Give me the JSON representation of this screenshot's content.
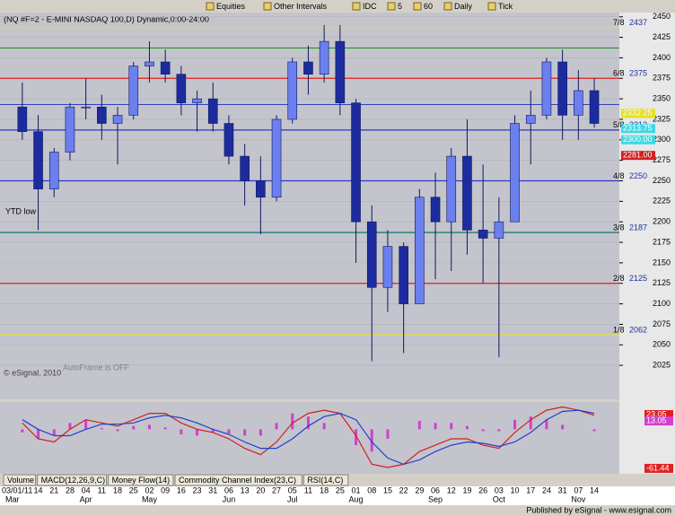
{
  "toolbar": {
    "symbol": "(NQ #F=2 - E-MINI NASDAQ 100,D) Dynamic,0:00-24:00",
    "items": [
      "Equities",
      "Other Intervals",
      "IDC",
      "5",
      "60",
      "Daily",
      "Tick"
    ]
  },
  "tabs": [
    "Volume",
    "MACD(12,26,9,C)",
    "Money Flow(14)",
    "Commodity Channel Index(23,C)",
    "RSI(14,C)"
  ],
  "footer": "Published by eSignal - www.esignal.com",
  "chart_data": [
    {
      "type": "candlestick",
      "categories": [
        "03/01/11",
        "14",
        "21",
        "28",
        "04",
        "11",
        "18",
        "25",
        "02",
        "09",
        "16",
        "23",
        "31",
        "06",
        "13",
        "20",
        "27",
        "05",
        "11",
        "18",
        "25",
        "01",
        "08",
        "15",
        "22",
        "29",
        "06",
        "12",
        "19",
        "26",
        "03",
        "10",
        "17",
        "24",
        "31",
        "07",
        "14"
      ],
      "month_labels": [
        "Mar",
        null,
        null,
        null,
        "Apr",
        null,
        null,
        null,
        "May",
        null,
        null,
        null,
        null,
        "Jun",
        null,
        null,
        null,
        "Jul",
        null,
        null,
        null,
        "Aug",
        null,
        null,
        null,
        null,
        "Sep",
        null,
        null,
        null,
        "Oct",
        null,
        null,
        null,
        null,
        "Nov",
        null
      ],
      "ohlc": [
        [
          2340,
          2370,
          2300,
          2310
        ],
        [
          2310,
          2330,
          2190,
          2240
        ],
        [
          2240,
          2290,
          2230,
          2285
        ],
        [
          2285,
          2345,
          2275,
          2340
        ],
        [
          2340,
          2375,
          2325,
          2340
        ],
        [
          2340,
          2355,
          2300,
          2320
        ],
        [
          2320,
          2340,
          2270,
          2330
        ],
        [
          2330,
          2395,
          2325,
          2390
        ],
        [
          2390,
          2420,
          2370,
          2395
        ],
        [
          2395,
          2410,
          2370,
          2380
        ],
        [
          2380,
          2390,
          2330,
          2345
        ],
        [
          2345,
          2360,
          2310,
          2350
        ],
        [
          2350,
          2370,
          2310,
          2320
        ],
        [
          2320,
          2330,
          2270,
          2280
        ],
        [
          2280,
          2295,
          2220,
          2250
        ],
        [
          2250,
          2280,
          2185,
          2230
        ],
        [
          2230,
          2330,
          2225,
          2325
        ],
        [
          2325,
          2400,
          2320,
          2395
        ],
        [
          2395,
          2415,
          2355,
          2380
        ],
        [
          2380,
          2440,
          2370,
          2420
        ],
        [
          2420,
          2440,
          2330,
          2345
        ],
        [
          2345,
          2350,
          2150,
          2200
        ],
        [
          2200,
          2220,
          2030,
          2120
        ],
        [
          2120,
          2190,
          2090,
          2170
        ],
        [
          2170,
          2175,
          2040,
          2100
        ],
        [
          2100,
          2240,
          2100,
          2230
        ],
        [
          2230,
          2260,
          2130,
          2200
        ],
        [
          2200,
          2290,
          2140,
          2280
        ],
        [
          2280,
          2325,
          2160,
          2190
        ],
        [
          2190,
          2270,
          2125,
          2180
        ],
        [
          2180,
          2230,
          2035,
          2200
        ],
        [
          2200,
          2330,
          2200,
          2320
        ],
        [
          2320,
          2360,
          2270,
          2330
        ],
        [
          2330,
          2400,
          2325,
          2395
        ],
        [
          2395,
          2410,
          2300,
          2330
        ],
        [
          2330,
          2385,
          2300,
          2360
        ],
        [
          2360,
          2375,
          2315,
          2320
        ]
      ],
      "up_color": "#6b80ee",
      "down_color": "#1c2c9e",
      "ylim": [
        1989,
        2453
      ],
      "yticks": [
        2025,
        2050,
        2075,
        2100,
        2125,
        2150,
        2175,
        2200,
        2225,
        2250,
        2275,
        2300,
        2325,
        2350,
        2375,
        2400,
        2425,
        2450
      ],
      "grid": true,
      "levels": [
        {
          "name": "7/8",
          "value": 2437,
          "color": "#e6e020"
        },
        {
          "name": "6/8",
          "value": 2375,
          "color": "#e02020"
        },
        {
          "name": "5/8",
          "value": 2312,
          "color": "#2a3ac8"
        },
        {
          "name": "4/8",
          "value": 2250,
          "color": "#2a3ac8"
        },
        {
          "name": "3/8",
          "value": 2187,
          "color": "#207878"
        },
        {
          "name": "2/8",
          "value": 2125,
          "color": "#e02020"
        },
        {
          "name": "1/8",
          "value": 2062,
          "color": "#e6e020"
        }
      ],
      "extra_levels": [
        {
          "value": 2412,
          "color": "#208a20"
        },
        {
          "value": 2343,
          "color": "#3040c0"
        }
      ],
      "price_boxes": [
        {
          "value": 2332.25,
          "label": "2332.25",
          "color": "#e6e020"
        },
        {
          "value": 2313.75,
          "label": "2313.75",
          "color": "#40d8e0"
        },
        {
          "value": 2300,
          "label": "2300.00",
          "color": "#40d8e0"
        },
        {
          "value": 2281,
          "label": "2281.00",
          "color": "#d02020"
        }
      ],
      "annotations": [
        "YTD low",
        "AutoFrame is OFF",
        "© eSignal, 2010"
      ]
    },
    {
      "type": "line",
      "series": [
        {
          "color": "#d02020",
          "values": [
            10,
            -15,
            -20,
            0,
            15,
            10,
            5,
            15,
            25,
            25,
            10,
            0,
            -5,
            -15,
            -30,
            -40,
            -20,
            10,
            25,
            30,
            25,
            -10,
            -55,
            -60,
            -55,
            -35,
            -25,
            -15,
            -15,
            -25,
            -30,
            -5,
            15,
            30,
            35,
            30,
            22
          ]
        },
        {
          "color": "#2040d0",
          "values": [
            15,
            0,
            -10,
            -10,
            0,
            8,
            8,
            10,
            18,
            22,
            18,
            10,
            0,
            -8,
            -20,
            -30,
            -30,
            -15,
            5,
            20,
            25,
            15,
            -20,
            -45,
            -55,
            -48,
            -35,
            -25,
            -20,
            -22,
            -27,
            -20,
            -5,
            15,
            28,
            30,
            25
          ]
        }
      ],
      "histogram": {
        "color": "#d040d0",
        "values": [
          -5,
          -15,
          -10,
          10,
          15,
          2,
          -3,
          5,
          7,
          3,
          -8,
          -10,
          -5,
          -7,
          -10,
          -10,
          10,
          25,
          20,
          10,
          0,
          -25,
          -35,
          -15,
          0,
          13,
          10,
          10,
          5,
          -3,
          -3,
          15,
          20,
          15,
          7,
          0,
          -3
        ]
      },
      "ylim": [
        -70,
        40
      ],
      "value_boxes": [
        {
          "value": 23.05,
          "label": "23.05",
          "color": "#e02020"
        },
        {
          "value": 13.05,
          "label": "13.05",
          "color": "#d040d0"
        },
        {
          "value": -61.44,
          "label": "-61.44",
          "color": "#e02020"
        }
      ]
    }
  ]
}
